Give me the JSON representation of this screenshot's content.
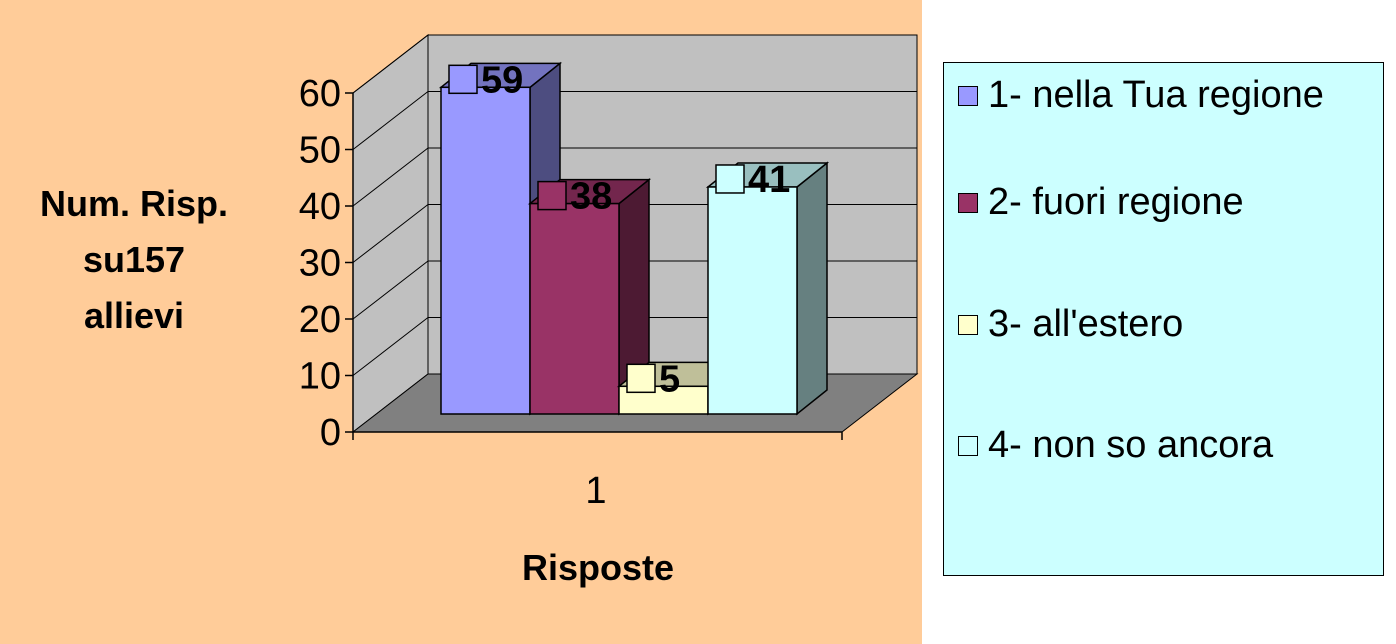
{
  "colors": {
    "plot_background": "#ffcc99",
    "legend_background": "#ccffff",
    "wall": "#c0c0c0",
    "floor": "#808080"
  },
  "chart_data": {
    "type": "bar",
    "categories": [
      "1"
    ],
    "series": [
      {
        "name": "1- nella Tua regione",
        "values": [
          59
        ],
        "color": "#9999ff"
      },
      {
        "name": "2- fuori regione",
        "values": [
          38
        ],
        "color": "#993366"
      },
      {
        "name": "3- all'estero",
        "values": [
          5
        ],
        "color": "#ffffcc"
      },
      {
        "name": "4- non so ancora",
        "values": [
          41
        ],
        "color": "#ccffff"
      }
    ],
    "ylabel": "Num. Risp. su157 allievi",
    "xlabel": "Risposte",
    "y_ticks": [
      "0",
      "10",
      "20",
      "30",
      "40",
      "50",
      "60"
    ],
    "ylim": [
      0,
      60
    ],
    "data_labels": [
      "59",
      "38",
      "5",
      "41"
    ],
    "grid": true,
    "three_d": true,
    "legend_position": "right"
  }
}
